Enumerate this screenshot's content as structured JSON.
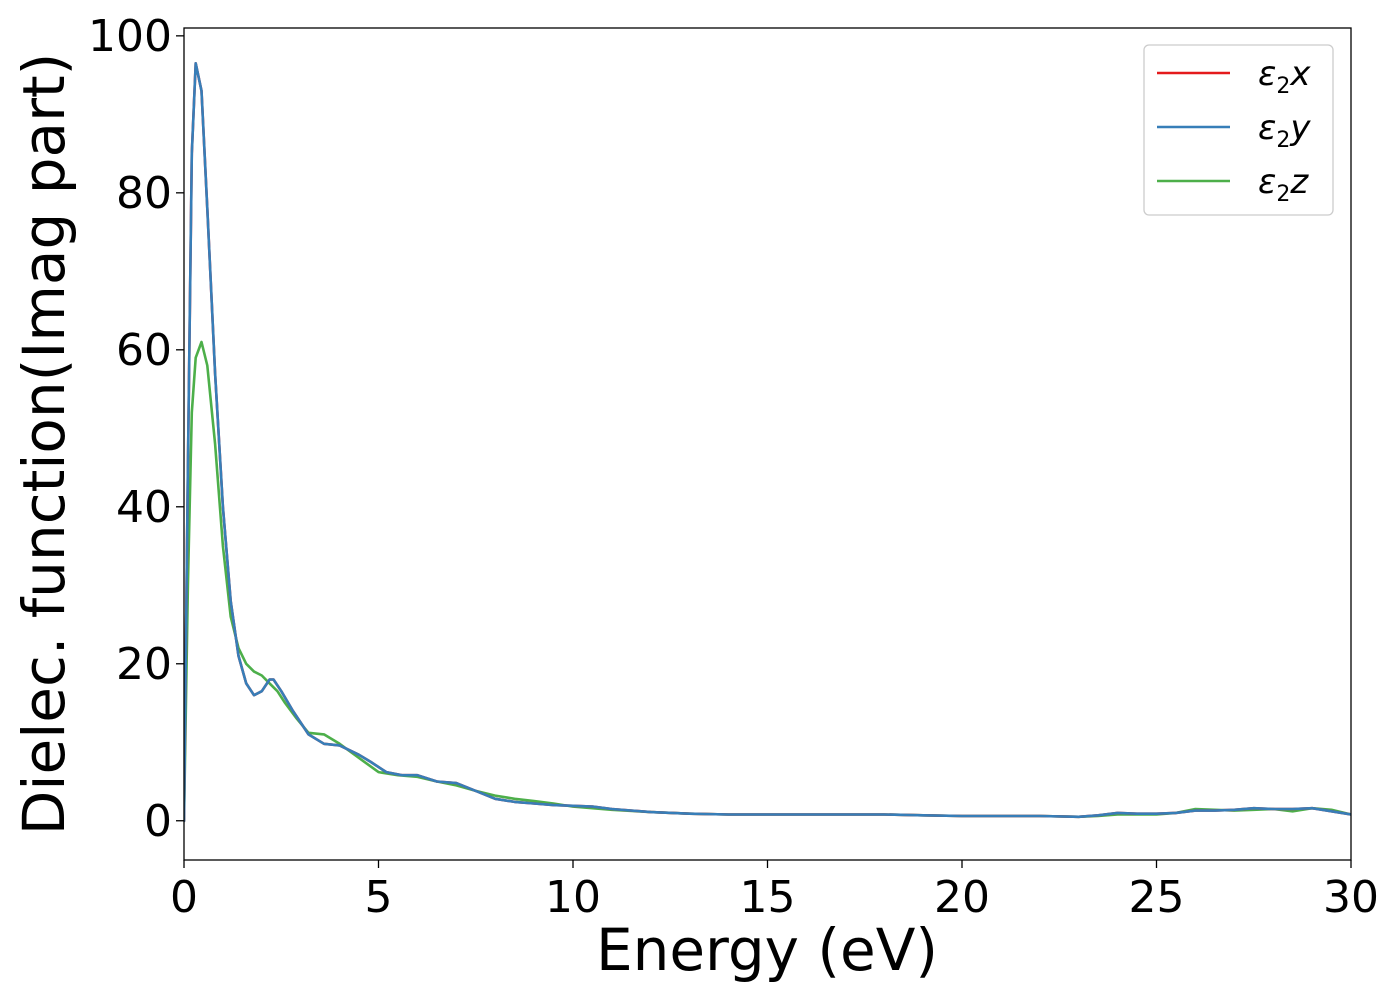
{
  "chart_data": {
    "type": "line",
    "title": "",
    "xlabel": "Energy (eV)",
    "ylabel": "Dielec. function(Imag part)",
    "xlim": [
      0,
      30
    ],
    "ylim": [
      -5,
      101
    ],
    "xticks": [
      0,
      5,
      10,
      15,
      20,
      25,
      30
    ],
    "yticks": [
      0,
      20,
      40,
      60,
      80,
      100
    ],
    "legend_position": "top-right",
    "grid": false,
    "series": [
      {
        "name": "ε₂x",
        "legend": {
          "base": "ε",
          "sub": "2",
          "var": "x"
        },
        "color": "#e41a1c",
        "x": [
          0,
          0.1,
          0.2,
          0.3,
          0.45,
          0.6,
          0.8,
          1.0,
          1.2,
          1.4,
          1.6,
          1.8,
          2.0,
          2.2,
          2.3,
          2.5,
          2.8,
          3.2,
          3.6,
          4.0,
          4.5,
          4.8,
          5.2,
          5.6,
          6.0,
          6.5,
          7.0,
          7.5,
          8.0,
          8.5,
          9.0,
          9.5,
          10.0,
          10.5,
          11.0,
          12.0,
          13.0,
          14.0,
          15.0,
          16.0,
          17.0,
          18.0,
          19.0,
          20.0,
          21.0,
          22.0,
          23.0,
          23.5,
          24.0,
          24.5,
          25.0,
          25.5,
          26.0,
          26.5,
          27.0,
          27.5,
          28.0,
          28.5,
          29.0,
          29.5,
          30.0
        ],
        "y": [
          0,
          45,
          85,
          96.5,
          93,
          78,
          57,
          40,
          28,
          21,
          17.5,
          16,
          16.5,
          18,
          18,
          16.5,
          14,
          11,
          9.8,
          9.6,
          8.4,
          7.5,
          6.2,
          5.8,
          5.8,
          5.0,
          4.8,
          3.8,
          2.8,
          2.4,
          2.2,
          2.0,
          1.9,
          1.8,
          1.5,
          1.1,
          0.9,
          0.8,
          0.8,
          0.8,
          0.8,
          0.8,
          0.7,
          0.6,
          0.6,
          0.6,
          0.5,
          0.7,
          1.0,
          0.9,
          0.9,
          1.0,
          1.3,
          1.3,
          1.4,
          1.6,
          1.5,
          1.5,
          1.6,
          1.2,
          0.8
        ]
      },
      {
        "name": "ε₂y",
        "legend": {
          "base": "ε",
          "sub": "2",
          "var": "y"
        },
        "color": "#377eb8",
        "x": [
          0,
          0.1,
          0.2,
          0.3,
          0.45,
          0.6,
          0.8,
          1.0,
          1.2,
          1.4,
          1.6,
          1.8,
          2.0,
          2.2,
          2.3,
          2.5,
          2.8,
          3.2,
          3.6,
          4.0,
          4.5,
          4.8,
          5.2,
          5.6,
          6.0,
          6.5,
          7.0,
          7.5,
          8.0,
          8.5,
          9.0,
          9.5,
          10.0,
          10.5,
          11.0,
          12.0,
          13.0,
          14.0,
          15.0,
          16.0,
          17.0,
          18.0,
          19.0,
          20.0,
          21.0,
          22.0,
          23.0,
          23.5,
          24.0,
          24.5,
          25.0,
          25.5,
          26.0,
          26.5,
          27.0,
          27.5,
          28.0,
          28.5,
          29.0,
          29.5,
          30.0
        ],
        "y": [
          0,
          45,
          85,
          96.5,
          93,
          78,
          57,
          40,
          28,
          21,
          17.5,
          16,
          16.5,
          18,
          18,
          16.5,
          14,
          11,
          9.8,
          9.6,
          8.4,
          7.5,
          6.2,
          5.8,
          5.8,
          5.0,
          4.8,
          3.8,
          2.8,
          2.4,
          2.2,
          2.0,
          1.9,
          1.8,
          1.5,
          1.1,
          0.9,
          0.8,
          0.8,
          0.8,
          0.8,
          0.8,
          0.7,
          0.6,
          0.6,
          0.6,
          0.5,
          0.7,
          1.0,
          0.9,
          0.9,
          1.0,
          1.3,
          1.3,
          1.4,
          1.6,
          1.5,
          1.5,
          1.6,
          1.2,
          0.8
        ]
      },
      {
        "name": "ε₂z",
        "legend": {
          "base": "ε",
          "sub": "2",
          "var": "z"
        },
        "color": "#4daf4a",
        "x": [
          0,
          0.1,
          0.2,
          0.3,
          0.45,
          0.6,
          0.8,
          1.0,
          1.2,
          1.4,
          1.6,
          1.8,
          2.0,
          2.2,
          2.4,
          2.6,
          2.9,
          3.2,
          3.6,
          4.0,
          4.5,
          5.0,
          5.5,
          6.0,
          6.5,
          7.0,
          7.5,
          8.0,
          8.5,
          9.0,
          9.5,
          10.0,
          10.5,
          11.0,
          12.0,
          13.0,
          14.0,
          15.0,
          16.0,
          17.0,
          18.0,
          19.0,
          20.0,
          21.0,
          22.0,
          23.0,
          23.5,
          24.0,
          24.5,
          25.0,
          25.5,
          26.0,
          26.5,
          27.0,
          27.5,
          28.0,
          28.5,
          29.0,
          29.5,
          30.0
        ],
        "y": [
          0,
          30,
          52,
          59,
          61,
          58,
          48,
          35,
          26,
          22,
          20,
          19,
          18.5,
          17.5,
          16.5,
          15,
          13,
          11.2,
          11,
          9.8,
          8.0,
          6.2,
          5.8,
          5.6,
          5.0,
          4.5,
          3.8,
          3.2,
          2.8,
          2.5,
          2.2,
          1.8,
          1.6,
          1.4,
          1.1,
          0.9,
          0.8,
          0.8,
          0.8,
          0.8,
          0.8,
          0.7,
          0.6,
          0.6,
          0.6,
          0.5,
          0.6,
          0.8,
          0.8,
          0.8,
          1.0,
          1.5,
          1.4,
          1.3,
          1.4,
          1.5,
          1.2,
          1.6,
          1.4,
          0.8
        ]
      }
    ]
  }
}
